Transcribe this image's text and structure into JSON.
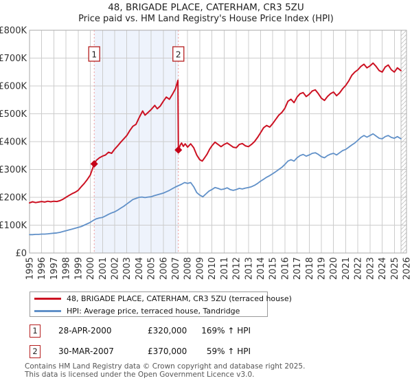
{
  "title": {
    "line1": "48, BRIGADE PLACE, CATERHAM, CR3 5ZU",
    "line2": "Price paid vs. HM Land Registry's House Price Index (HPI)"
  },
  "chart_data": {
    "type": "line",
    "xlim": [
      1995,
      2026
    ],
    "ylim": [
      0,
      800
    ],
    "y_unit": "GBP thousands",
    "grid": true,
    "y_tick_labels": [
      "£0",
      "£100K",
      "£200K",
      "£300K",
      "£400K",
      "£500K",
      "£600K",
      "£700K",
      "£800K"
    ],
    "x_tick_labels": [
      "1995",
      "1996",
      "1997",
      "1998",
      "1999",
      "2000",
      "2001",
      "2002",
      "2003",
      "2004",
      "2005",
      "2006",
      "2007",
      "2008",
      "2009",
      "2010",
      "2011",
      "2012",
      "2013",
      "2014",
      "2015",
      "2016",
      "2017",
      "2018",
      "2019",
      "2020",
      "2021",
      "2022",
      "2023",
      "2024",
      "2025",
      "2026"
    ],
    "colors": {
      "grid": "#cccccc",
      "border": "#aaaaaa",
      "shade": "#eef3fc",
      "marker_dash": "#f19999",
      "marker_fill": "#c40018",
      "marker_box_border": "#b51d1d",
      "hatch": "#bfbfbf"
    },
    "shaded_region_x": [
      2000.32,
      2007.24
    ],
    "future_hatch_start_x": 2025.54,
    "sale_markers": [
      {
        "label": "1",
        "x": 2000.32,
        "y": 320,
        "date": "28-APR-2000",
        "price": "£320,000"
      },
      {
        "label": "2",
        "x": 2007.24,
        "y": 370,
        "date": "30-MAR-2007",
        "price": "£370,000"
      }
    ],
    "series": [
      {
        "name": "48, BRIGADE PLACE, CATERHAM, CR3 5ZU (terraced house)",
        "color": "#cc1122",
        "width": 2,
        "x": [
          1995.0,
          1995.25,
          1995.5,
          1995.75,
          1996.0,
          1996.25,
          1996.5,
          1996.75,
          1997.0,
          1997.25,
          1997.5,
          1997.75,
          1998.0,
          1998.25,
          1998.5,
          1998.75,
          1999.0,
          1999.25,
          1999.5,
          1999.75,
          2000.0,
          2000.32,
          2000.5,
          2000.75,
          2001.0,
          2001.25,
          2001.5,
          2001.75,
          2002.0,
          2002.25,
          2002.5,
          2002.75,
          2003.0,
          2003.25,
          2003.5,
          2003.75,
          2004.0,
          2004.3,
          2004.5,
          2004.75,
          2005.0,
          2005.3,
          2005.5,
          2005.75,
          2006.0,
          2006.25,
          2006.5,
          2006.75,
          2007.0,
          2007.2,
          2007.24,
          2007.4,
          2007.5,
          2007.65,
          2007.8,
          2008.0,
          2008.25,
          2008.5,
          2008.75,
          2009.0,
          2009.2,
          2009.4,
          2009.6,
          2009.8,
          2010.0,
          2010.25,
          2010.5,
          2010.75,
          2011.0,
          2011.25,
          2011.5,
          2011.75,
          2012.0,
          2012.25,
          2012.5,
          2012.75,
          2013.0,
          2013.25,
          2013.5,
          2013.75,
          2014.0,
          2014.25,
          2014.5,
          2014.75,
          2015.0,
          2015.25,
          2015.5,
          2015.75,
          2016.0,
          2016.25,
          2016.5,
          2016.75,
          2017.0,
          2017.25,
          2017.5,
          2017.75,
          2018.0,
          2018.25,
          2018.5,
          2018.75,
          2019.0,
          2019.25,
          2019.5,
          2019.75,
          2020.0,
          2020.25,
          2020.5,
          2020.75,
          2021.0,
          2021.25,
          2021.5,
          2021.75,
          2022.0,
          2022.25,
          2022.5,
          2022.75,
          2023.0,
          2023.25,
          2023.5,
          2023.75,
          2024.0,
          2024.25,
          2024.5,
          2024.75,
          2025.0,
          2025.25,
          2025.54
        ],
        "y": [
          180,
          184,
          181,
          183,
          185,
          183,
          186,
          184,
          186,
          185,
          188,
          193,
          200,
          207,
          213,
          218,
          225,
          238,
          250,
          264,
          280,
          320,
          333,
          342,
          348,
          352,
          362,
          358,
          373,
          385,
          398,
          410,
          422,
          440,
          455,
          462,
          485,
          510,
          495,
          505,
          515,
          530,
          518,
          528,
          545,
          560,
          552,
          570,
          590,
          620,
          370,
          388,
          395,
          383,
          392,
          380,
          392,
          378,
          352,
          335,
          330,
          342,
          355,
          372,
          385,
          398,
          390,
          382,
          390,
          395,
          388,
          380,
          378,
          390,
          393,
          385,
          382,
          390,
          400,
          415,
          432,
          450,
          458,
          452,
          465,
          480,
          495,
          505,
          520,
          545,
          552,
          540,
          560,
          572,
          576,
          562,
          570,
          582,
          586,
          572,
          556,
          548,
          562,
          572,
          578,
          565,
          575,
          590,
          602,
          618,
          638,
          650,
          658,
          670,
          678,
          665,
          672,
          682,
          670,
          655,
          650,
          668,
          675,
          658,
          650,
          665,
          655
        ]
      },
      {
        "name": "HPI: Average price, terraced house, Tandridge",
        "color": "#6090c8",
        "width": 1.8,
        "x": [
          1995.0,
          1995.25,
          1995.5,
          1995.75,
          1996.0,
          1996.25,
          1996.5,
          1996.75,
          1997.0,
          1997.25,
          1997.5,
          1997.75,
          1998.0,
          1998.25,
          1998.5,
          1998.75,
          1999.0,
          1999.25,
          1999.5,
          1999.75,
          2000.0,
          2000.32,
          2000.5,
          2000.75,
          2001.0,
          2001.25,
          2001.5,
          2001.75,
          2002.0,
          2002.25,
          2002.5,
          2002.75,
          2003.0,
          2003.25,
          2003.5,
          2003.75,
          2004.0,
          2004.25,
          2004.5,
          2004.75,
          2005.0,
          2005.25,
          2005.5,
          2005.75,
          2006.0,
          2006.25,
          2006.5,
          2006.75,
          2007.0,
          2007.25,
          2007.5,
          2007.75,
          2008.0,
          2008.25,
          2008.5,
          2008.75,
          2009.0,
          2009.25,
          2009.5,
          2009.75,
          2010.0,
          2010.25,
          2010.5,
          2010.75,
          2011.0,
          2011.25,
          2011.5,
          2011.75,
          2012.0,
          2012.25,
          2012.5,
          2012.75,
          2013.0,
          2013.25,
          2013.5,
          2013.75,
          2014.0,
          2014.25,
          2014.5,
          2014.75,
          2015.0,
          2015.25,
          2015.5,
          2015.75,
          2016.0,
          2016.25,
          2016.5,
          2016.75,
          2017.0,
          2017.25,
          2017.5,
          2017.75,
          2018.0,
          2018.25,
          2018.5,
          2018.75,
          2019.0,
          2019.25,
          2019.5,
          2019.75,
          2020.0,
          2020.25,
          2020.5,
          2020.75,
          2021.0,
          2021.25,
          2021.5,
          2021.75,
          2022.0,
          2022.25,
          2022.5,
          2022.75,
          2023.0,
          2023.25,
          2023.5,
          2023.75,
          2024.0,
          2024.25,
          2024.5,
          2024.75,
          2025.0,
          2025.25,
          2025.54
        ],
        "y": [
          66,
          66,
          67,
          67,
          68,
          68,
          69,
          70,
          71,
          72,
          74,
          77,
          80,
          83,
          86,
          89,
          92,
          95,
          100,
          105,
          110,
          119,
          123,
          126,
          128,
          133,
          139,
          144,
          148,
          154,
          161,
          168,
          176,
          184,
          192,
          196,
          200,
          201,
          199,
          201,
          202,
          206,
          209,
          212,
          215,
          220,
          225,
          231,
          237,
          242,
          247,
          253,
          250,
          253,
          238,
          217,
          208,
          202,
          212,
          222,
          228,
          235,
          232,
          228,
          230,
          234,
          228,
          225,
          228,
          232,
          230,
          233,
          235,
          238,
          243,
          250,
          258,
          265,
          272,
          278,
          285,
          292,
          300,
          308,
          318,
          330,
          335,
          330,
          342,
          350,
          354,
          348,
          352,
          358,
          360,
          354,
          346,
          342,
          350,
          355,
          358,
          352,
          360,
          368,
          372,
          380,
          388,
          395,
          405,
          415,
          422,
          416,
          422,
          428,
          420,
          412,
          410,
          418,
          422,
          415,
          412,
          418,
          410
        ]
      }
    ]
  },
  "legend": {
    "items": [
      {
        "label": "48, BRIGADE PLACE, CATERHAM, CR3 5ZU (terraced house)",
        "color": "#cc1122"
      },
      {
        "label": "HPI: Average price, terraced house, Tandridge",
        "color": "#6090c8"
      }
    ]
  },
  "sales": [
    {
      "num": "1",
      "date": "28-APR-2000",
      "price": "£320,000",
      "hpi": "169% ↑ HPI"
    },
    {
      "num": "2",
      "date": "30-MAR-2007",
      "price": "£370,000",
      "hpi": "59% ↑ HPI"
    }
  ],
  "footer": {
    "line1": "Contains HM Land Registry data © Crown copyright and database right 2025.",
    "line2": "This data is licensed under the Open Government Licence v3.0."
  }
}
